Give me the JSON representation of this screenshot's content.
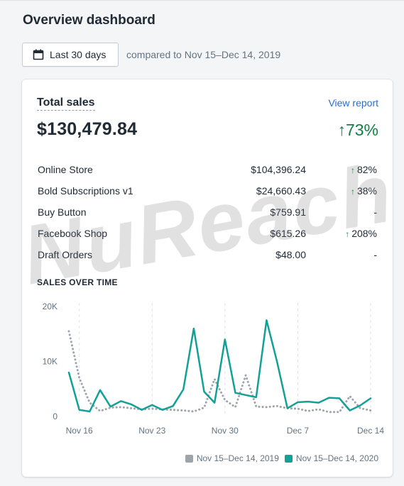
{
  "page": {
    "title": "Overview dashboard"
  },
  "date_range": {
    "label": "Last 30 days",
    "compare_text": "compared to Nov 15–Dec 14, 2019",
    "icon": "calendar-icon"
  },
  "card": {
    "title": "Total sales",
    "view_report": "View report",
    "total": "$130,479.84",
    "change": "73%",
    "change_arrow": "↑",
    "rows": [
      {
        "channel": "Online Store",
        "amount": "$104,396.24",
        "change": "82%",
        "trend": "up"
      },
      {
        "channel": "Bold Subscriptions v1",
        "amount": "$24,660.43",
        "change": "38%",
        "trend": "up"
      },
      {
        "channel": "Buy Button",
        "amount": "$759.91",
        "change": "-",
        "trend": "none"
      },
      {
        "channel": "Facebook Shop",
        "amount": "$615.26",
        "change": "208%",
        "trend": "up"
      },
      {
        "channel": "Draft Orders",
        "amount": "$48.00",
        "change": "-",
        "trend": "none"
      }
    ],
    "sales_over_time_label": "SALES OVER TIME"
  },
  "colors": {
    "current": "#13a096",
    "previous": "#9ea4ab",
    "positive": "#108043",
    "link": "#2c6ecb"
  },
  "watermark": "NuReach",
  "chart_data": {
    "type": "line",
    "title": "SALES OVER TIME",
    "x": [
      "Nov 15",
      "Nov 16",
      "Nov 17",
      "Nov 18",
      "Nov 19",
      "Nov 20",
      "Nov 21",
      "Nov 22",
      "Nov 23",
      "Nov 24",
      "Nov 25",
      "Nov 26",
      "Nov 27",
      "Nov 28",
      "Nov 29",
      "Nov 30",
      "Dec 1",
      "Dec 2",
      "Dec 3",
      "Dec 4",
      "Dec 5",
      "Dec 6",
      "Dec 7",
      "Dec 8",
      "Dec 9",
      "Dec 10",
      "Dec 11",
      "Dec 12",
      "Dec 13",
      "Dec 14"
    ],
    "x_tick_labels": [
      "Nov 16",
      "Nov 23",
      "Nov 30",
      "Dec 7",
      "Dec 14"
    ],
    "y_tick_labels": [
      "0",
      "10K",
      "20K"
    ],
    "ylim": [
      0,
      20000
    ],
    "grid": "vertical dashed",
    "legend_position": "bottom-right",
    "series": [
      {
        "name": "Nov 15–Dec 14, 2019",
        "style": "dotted",
        "color": "#9ea4ab",
        "values": [
          15500,
          7000,
          2500,
          1000,
          1600,
          1700,
          1500,
          1300,
          1400,
          1300,
          1200,
          1100,
          900,
          1600,
          6800,
          3000,
          1700,
          7500,
          1800,
          1700,
          1900,
          1500,
          1400,
          1000,
          1300,
          800,
          800,
          3700,
          1500,
          1100
        ]
      },
      {
        "name": "Nov 15–Dec 14, 2020",
        "style": "solid",
        "color": "#13a096",
        "values": [
          8000,
          1200,
          900,
          4800,
          1800,
          2800,
          2200,
          1200,
          2100,
          1200,
          1900,
          4900,
          16000,
          4500,
          2500,
          14000,
          4300,
          3900,
          3500,
          17500,
          10000,
          1500,
          2600,
          2700,
          2500,
          3400,
          3300,
          1100,
          2000,
          3300
        ]
      }
    ]
  }
}
